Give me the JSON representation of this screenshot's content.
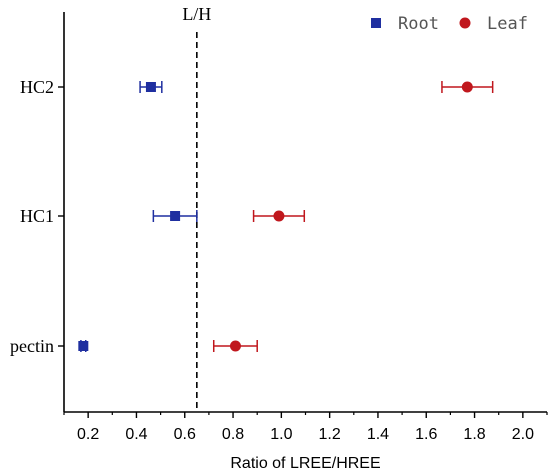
{
  "chart_data": {
    "type": "scatter",
    "orientation": "horizontal",
    "xlabel": "Ratio of LREE/HREE",
    "xlim": [
      0.1,
      2.1
    ],
    "xticks": [
      "0.2",
      "0.4",
      "0.6",
      "0.8",
      "1.0",
      "1.2",
      "1.4",
      "1.6",
      "1.8",
      "2.0"
    ],
    "categories": [
      "pectin",
      "HC1",
      "HC2"
    ],
    "reference_line": {
      "x": 0.65,
      "label": "L/H",
      "style": "dashed"
    },
    "legend": {
      "position": "top-right"
    },
    "series": [
      {
        "name": "Root",
        "marker": "square",
        "color": "#1f2fa0",
        "values": [
          0.18,
          0.56,
          0.46
        ],
        "errors": [
          0.01,
          0.09,
          0.045
        ]
      },
      {
        "name": "Leaf",
        "marker": "circle",
        "color": "#c0171d",
        "values": [
          0.81,
          0.99,
          1.77
        ],
        "errors": [
          0.09,
          0.105,
          0.105
        ]
      }
    ]
  }
}
